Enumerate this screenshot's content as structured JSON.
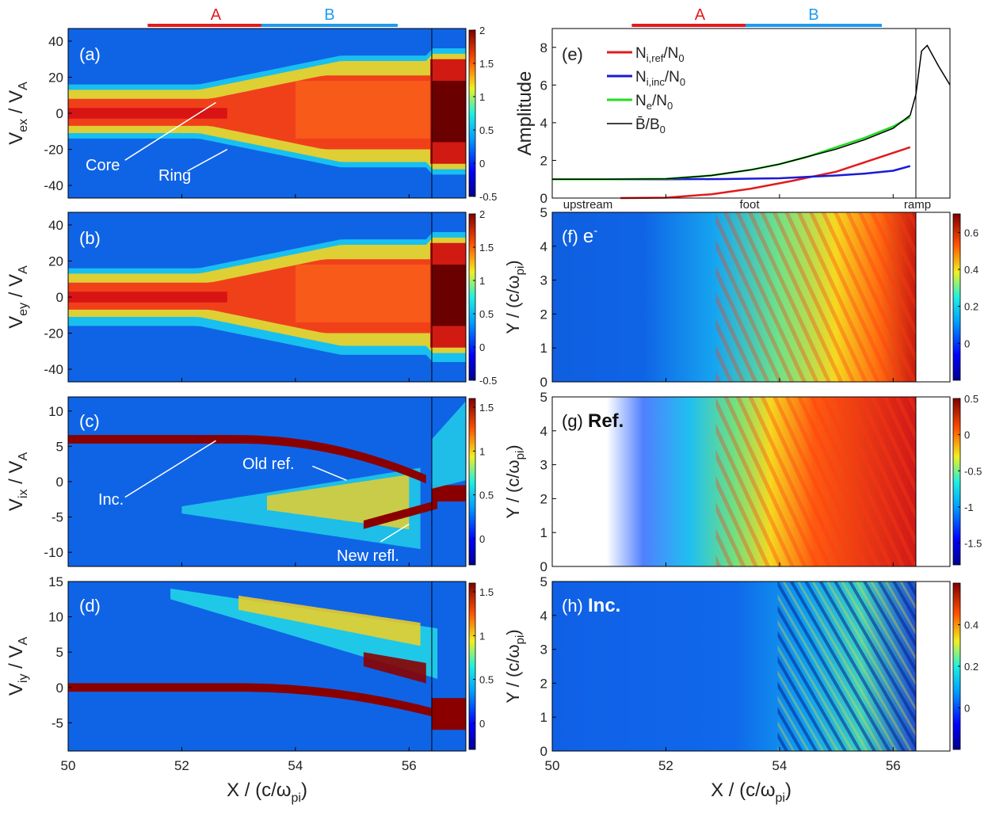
{
  "figure": {
    "region_bars_left": [
      {
        "label": "A",
        "color": "#e31a1c",
        "x0": 51.4,
        "x1": 53.8
      },
      {
        "label": "B",
        "color": "#1e9bf0",
        "x0": 53.4,
        "x1": 55.8
      }
    ],
    "region_bars_right": [
      {
        "label": "A",
        "color": "#e31a1c",
        "x0": 51.4,
        "x1": 53.8
      },
      {
        "label": "B",
        "color": "#1e9bf0",
        "x0": 53.4,
        "x1": 55.8
      }
    ],
    "xlabel_left": "X / (c/ω",
    "xlabel_right": "X / (c/ω",
    "xlabel_sub": "pi",
    "xlabel_close": ")",
    "x_ticks": [
      50,
      52,
      54,
      56
    ],
    "ramp_position": 56.4
  },
  "chart_data": [
    {
      "type": "heatmap",
      "panel": "(a)",
      "ylabel": "V",
      "ylabel_sub": "ex",
      "ylabel_rest": " / V",
      "ylabel_sub2": "A",
      "xlim": [
        50,
        57
      ],
      "ylim": [
        -47,
        47
      ],
      "yticks": [
        -40,
        -20,
        0,
        20,
        40
      ],
      "colorbar": {
        "range": [
          -0.5,
          2
        ],
        "ticks": [
          "2",
          "1.5",
          "1",
          "0.5",
          "0",
          "-0.5"
        ]
      },
      "annotations": [
        "Core",
        "Ring"
      ]
    },
    {
      "type": "heatmap",
      "panel": "(b)",
      "ylabel": "V",
      "ylabel_sub": "ey",
      "ylabel_rest": " / V",
      "ylabel_sub2": "A",
      "xlim": [
        50,
        57
      ],
      "ylim": [
        -47,
        47
      ],
      "yticks": [
        -40,
        -20,
        0,
        20,
        40
      ],
      "colorbar": {
        "range": [
          -0.5,
          2
        ],
        "ticks": [
          "2",
          "1.5",
          "1",
          "0.5",
          "0",
          "-0.5"
        ]
      }
    },
    {
      "type": "heatmap",
      "panel": "(c)",
      "ylabel": "V",
      "ylabel_sub": "ix",
      "ylabel_rest": " / V",
      "ylabel_sub2": "A",
      "xlim": [
        50,
        57
      ],
      "ylim": [
        -12,
        12
      ],
      "yticks": [
        -10,
        -5,
        0,
        5,
        10
      ],
      "colorbar": {
        "range": [
          -0.3,
          1.6
        ],
        "ticks": [
          "1.5",
          "1",
          "0.5",
          "0"
        ]
      },
      "annotations": [
        "Inc.",
        "Old ref.",
        "New refl."
      ]
    },
    {
      "type": "heatmap",
      "panel": "(d)",
      "ylabel": "V",
      "ylabel_sub": "iy",
      "ylabel_rest": " / V",
      "ylabel_sub2": "A",
      "xlim": [
        50,
        57
      ],
      "ylim": [
        -9,
        15
      ],
      "yticks": [
        -5,
        0,
        5,
        10,
        15
      ],
      "colorbar": {
        "range": [
          -0.3,
          1.6
        ],
        "ticks": [
          "1.5",
          "1",
          "0.5",
          "0"
        ]
      }
    },
    {
      "type": "line",
      "panel": "(e)",
      "ylabel": "Amplitude",
      "xlim": [
        50,
        57
      ],
      "ylim": [
        0,
        9
      ],
      "yticks": [
        0,
        2,
        4,
        6,
        8
      ],
      "x_region_labels": [
        "upstream",
        "foot",
        "ramp"
      ],
      "legend_position": "top-left",
      "series": [
        {
          "name": "N",
          "sub": "i,ref",
          "rest": "/N",
          "sub2": "0",
          "color": "#e31a1c",
          "x": [
            51.2,
            52.0,
            52.8,
            53.5,
            54.2,
            55.0,
            55.5,
            56.0,
            56.3
          ],
          "y": [
            0.0,
            0.02,
            0.2,
            0.5,
            0.9,
            1.4,
            1.9,
            2.4,
            2.7
          ]
        },
        {
          "name": "N",
          "sub": "i,inc",
          "rest": "/N",
          "sub2": "0",
          "color": "#1a1ad6",
          "x": [
            50.0,
            51.0,
            52.0,
            53.0,
            54.0,
            55.0,
            55.5,
            56.0,
            56.3
          ],
          "y": [
            1.0,
            1.0,
            1.0,
            1.01,
            1.05,
            1.2,
            1.3,
            1.45,
            1.7
          ]
        },
        {
          "name": "N",
          "sub": "e",
          "rest": "/N",
          "sub2": "0",
          "color": "#22dd22",
          "x": [
            50.0,
            51.0,
            52.0,
            52.8,
            53.5,
            54.0,
            54.5,
            55.0,
            55.5,
            56.0,
            56.3
          ],
          "y": [
            1.0,
            1.0,
            1.02,
            1.2,
            1.5,
            1.8,
            2.2,
            2.7,
            3.2,
            3.8,
            4.3
          ]
        },
        {
          "name": "B̄/B",
          "sub": "",
          "rest": "",
          "sub2": "0",
          "color": "#000000",
          "x": [
            50.0,
            51.0,
            52.0,
            52.8,
            53.5,
            54.0,
            54.5,
            55.0,
            55.5,
            56.0,
            56.3,
            56.4,
            56.5,
            56.6,
            56.8,
            57.0
          ],
          "y": [
            1.0,
            1.0,
            1.02,
            1.2,
            1.5,
            1.8,
            2.2,
            2.6,
            3.1,
            3.7,
            4.4,
            5.5,
            7.8,
            8.1,
            7.0,
            6.0
          ]
        }
      ]
    },
    {
      "type": "heatmap",
      "panel": "(f)",
      "label_text": "e",
      "label_sup": "-",
      "ylabel": "Y / (c/ω",
      "ylabel_sub": "pi",
      "ylabel_close": ")",
      "xlim": [
        50,
        57
      ],
      "ylim": [
        0,
        5
      ],
      "yticks": [
        0,
        1,
        2,
        3,
        4,
        5
      ],
      "colorbar": {
        "range": [
          -0.2,
          0.7
        ],
        "ticks": [
          "0.6",
          "0.4",
          "0.2",
          "0"
        ]
      }
    },
    {
      "type": "heatmap",
      "panel": "(g)",
      "label_text": "Ref.",
      "ylabel": "Y / (c/ω",
      "ylabel_sub": "pi",
      "ylabel_close": ")",
      "xlim": [
        50,
        57
      ],
      "ylim": [
        0,
        5
      ],
      "yticks": [
        0,
        1,
        2,
        3,
        4,
        5
      ],
      "colorbar": {
        "range": [
          -1.8,
          0.5
        ],
        "ticks": [
          "0.5",
          "0",
          "-0.5",
          "-1",
          "-1.5"
        ]
      }
    },
    {
      "type": "heatmap",
      "panel": "(h)",
      "label_text": "Inc.",
      "ylabel": "Y / (c/ω",
      "ylabel_sub": "pi",
      "ylabel_close": ")",
      "xlim": [
        50,
        57
      ],
      "ylim": [
        0,
        5
      ],
      "yticks": [
        0,
        1,
        2,
        3,
        4,
        5
      ],
      "colorbar": {
        "range": [
          -0.2,
          0.6
        ],
        "ticks": [
          "0.4",
          "0.2",
          "0"
        ]
      }
    }
  ],
  "colors": {
    "jet_low": "#00008f",
    "jet_blue": "#0f6fe8",
    "jet_cyan": "#1fc8f0",
    "jet_yellow": "#f6e21a",
    "jet_orange": "#ff8a12",
    "jet_red": "#e31a1c",
    "jet_dark": "#7a0000"
  }
}
